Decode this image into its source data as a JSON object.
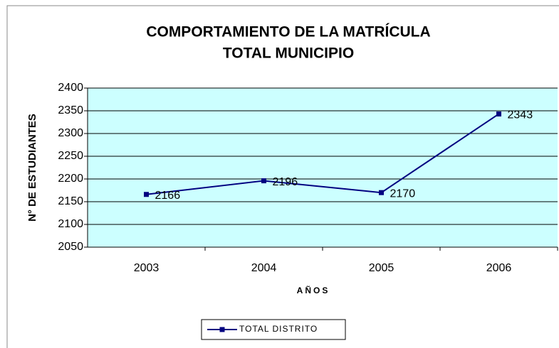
{
  "chart_data": {
    "type": "line",
    "title": [
      "COMPORTAMIENTO DE LA MATRÍCULA",
      "TOTAL MUNICIPIO"
    ],
    "x_label": "AÑOS",
    "y_label": "N° DE ESTUDIANTES",
    "categories": [
      "2003",
      "2004",
      "2005",
      "2006"
    ],
    "series": [
      {
        "name": "TOTAL DISTRITO",
        "color": "#000080",
        "values": [
          2166,
          2196,
          2170,
          2343
        ]
      }
    ],
    "ylim": [
      2050,
      2400
    ],
    "yticks": [
      2050,
      2100,
      2150,
      2200,
      2250,
      2300,
      2350,
      2400
    ],
    "grid": true,
    "legend": "bottom",
    "plot_background": "#ccffff"
  }
}
